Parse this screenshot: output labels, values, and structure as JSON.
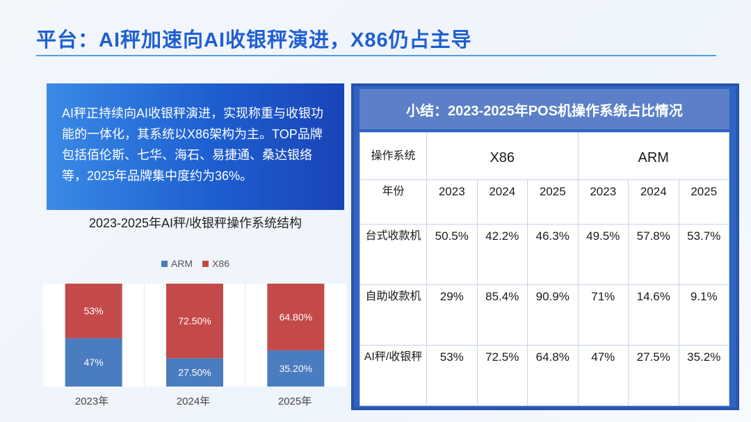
{
  "page": {
    "title": "平台：AI秤加速向AI收银秤演进，X86仍占主导"
  },
  "summary": {
    "text": "AI秤正持续向AI收银秤演进，实现称重与收银功能的一体化，其系统以X86架构为主。TOP品牌包括佰伦斯、七华、海石、易捷通、桑达银络等，2025年品牌集中度约为36%。"
  },
  "chart_data": {
    "type": "bar",
    "stacked": true,
    "title": "2023-2025年AI秤/收银秤操作系统结构",
    "categories": [
      "2023年",
      "2024年",
      "2025年"
    ],
    "series": [
      {
        "name": "ARM",
        "values": [
          47,
          27.5,
          35.2
        ],
        "labels": [
          "47%",
          "27.50%",
          "35.20%"
        ],
        "color": "#4a7cc0"
      },
      {
        "name": "X86",
        "values": [
          53,
          72.5,
          64.8
        ],
        "labels": [
          "53%",
          "72.50%",
          "64.80%"
        ],
        "color": "#c44a4a"
      }
    ],
    "ylim": [
      0,
      100
    ],
    "legend": "top"
  },
  "table": {
    "title": "小结：2023-2025年POS机操作系统占比情况",
    "corner_header": "操作系统",
    "group_headers": [
      "X86",
      "ARM"
    ],
    "year_row_label": "年份",
    "years": [
      "2023",
      "2024",
      "2025",
      "2023",
      "2024",
      "2025"
    ],
    "rows": [
      {
        "label": "台式收款机",
        "cells": [
          "50.5%",
          "42.2%",
          "46.3%",
          "49.5%",
          "57.8%",
          "53.7%"
        ]
      },
      {
        "label": "自助收款机",
        "cells": [
          "29%",
          "85.4%",
          "90.9%",
          "71%",
          "14.6%",
          "9.1%"
        ]
      },
      {
        "label": "AI秤/收银秤",
        "cells": [
          "53%",
          "72.5%",
          "64.8%",
          "47%",
          "27.5%",
          "35.2%"
        ]
      }
    ]
  }
}
